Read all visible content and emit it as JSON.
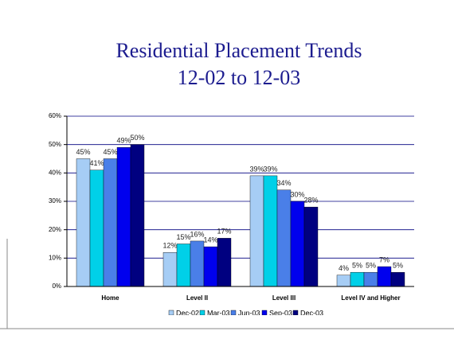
{
  "chart_data": {
    "type": "bar",
    "title": "Residential Placement Trends",
    "subtitle": "12-02 to 12-03",
    "categories": [
      "Home",
      "Level II",
      "Level III",
      "Level IV and Higher"
    ],
    "series": [
      {
        "name": "Dec-02",
        "color": "#a6cdf5",
        "values": [
          45,
          12,
          39,
          4
        ],
        "value_labels": [
          "45%",
          "12%",
          "39%",
          "4%"
        ]
      },
      {
        "name": "Mar-03",
        "color": "#00d0e8",
        "values": [
          41,
          15,
          39,
          5
        ],
        "value_labels": [
          "41%",
          "15%",
          "39%",
          "5%"
        ]
      },
      {
        "name": "Jun-03",
        "color": "#4a7fe8",
        "values": [
          45,
          16,
          34,
          5
        ],
        "value_labels": [
          "45%",
          "16%",
          "34%",
          "5%"
        ]
      },
      {
        "name": "Sep-03",
        "color": "#0000ee",
        "values": [
          49,
          14,
          30,
          7
        ],
        "value_labels": [
          "49%",
          "14%",
          "30%",
          "7%"
        ]
      },
      {
        "name": "Dec-03",
        "color": "#000080",
        "values": [
          50,
          17,
          28,
          5
        ],
        "value_labels": [
          "50%",
          "17%",
          "28%",
          "5%"
        ]
      }
    ],
    "ylim": [
      0,
      60
    ],
    "yticks": [
      {
        "value": 0,
        "label": "0%"
      },
      {
        "value": 10,
        "label": "10%"
      },
      {
        "value": 20,
        "label": "20%"
      },
      {
        "value": 30,
        "label": "30%"
      },
      {
        "value": 40,
        "label": "40%"
      },
      {
        "value": 50,
        "label": "50%"
      },
      {
        "value": 60,
        "label": "60%"
      }
    ],
    "grid": true,
    "legend": "bottom"
  }
}
